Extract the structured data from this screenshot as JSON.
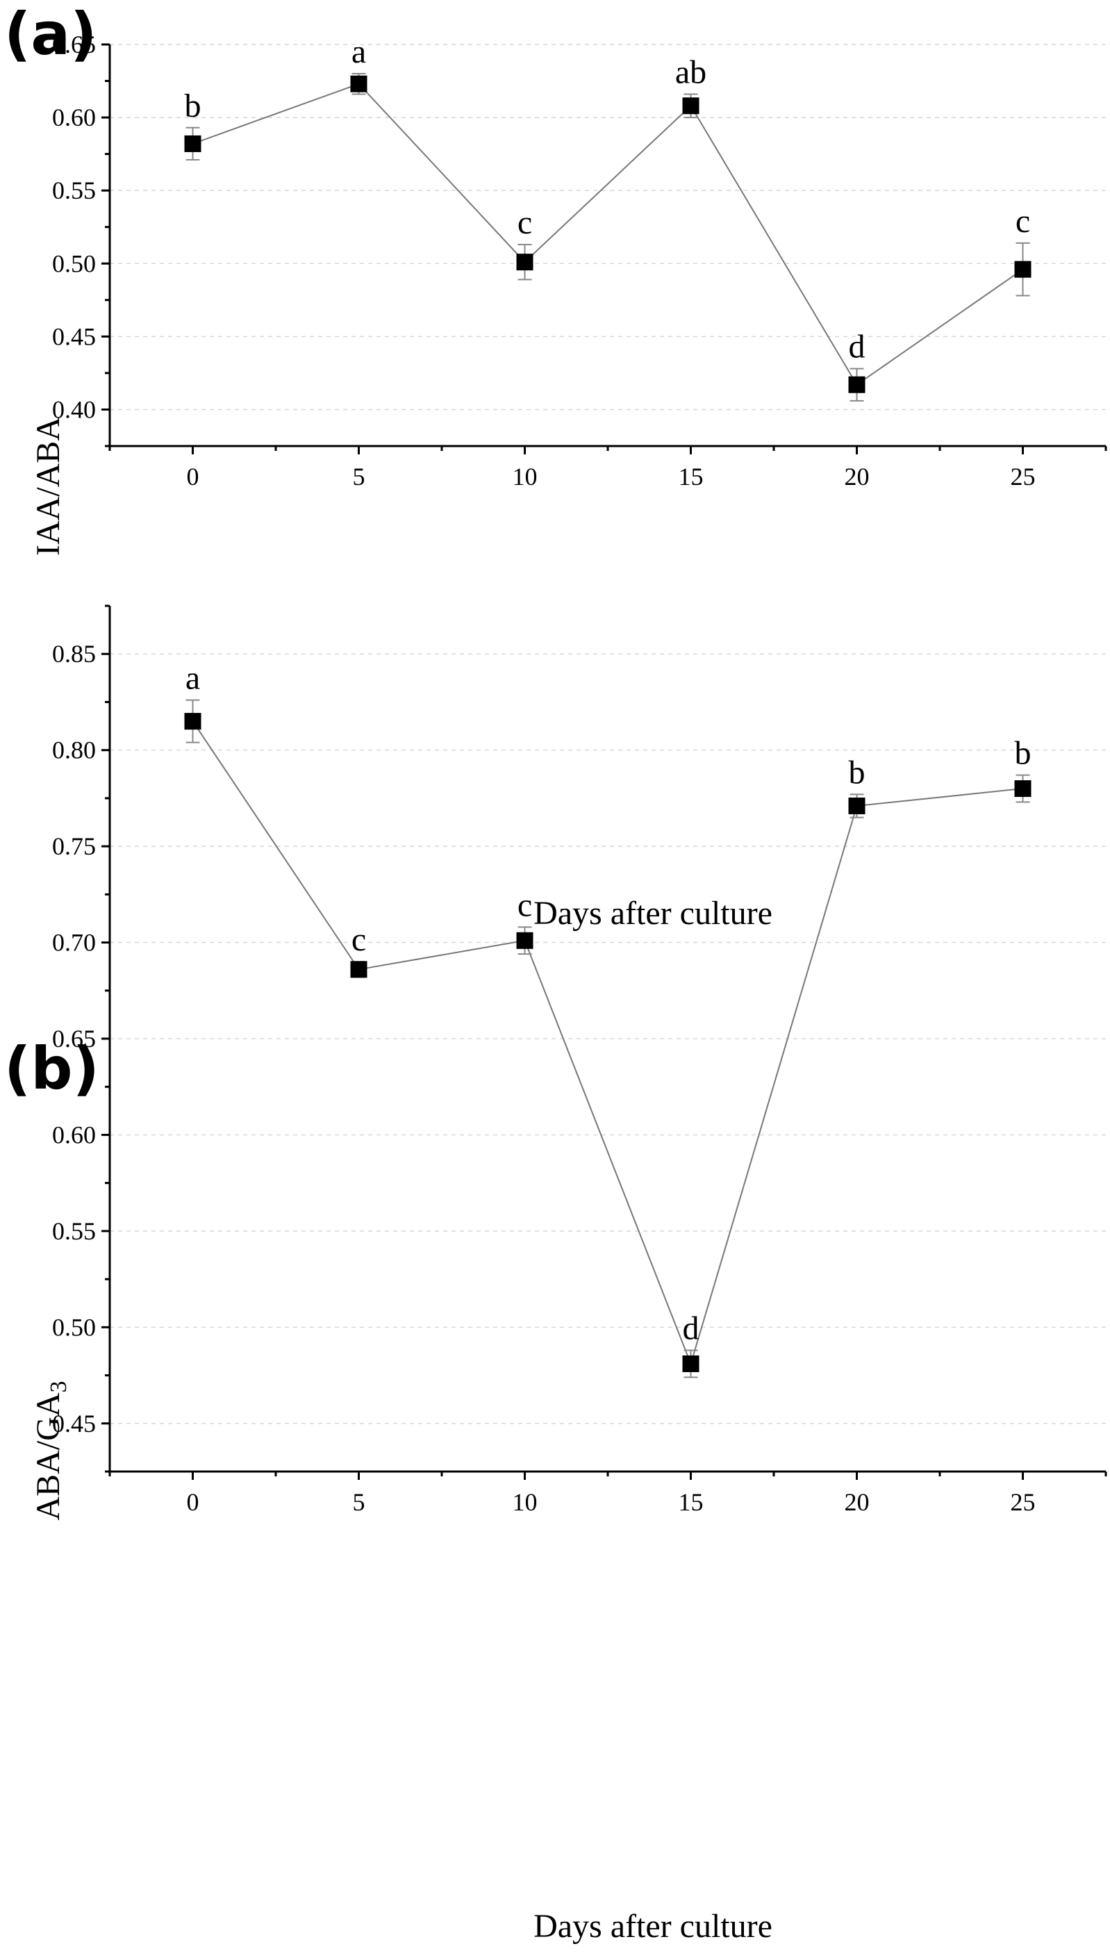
{
  "chart_data": [
    {
      "type": "line",
      "panel_label": "(a)",
      "xlabel": "Days after culture",
      "ylabel": "IAA/ABA",
      "x": [
        0,
        5,
        10,
        15,
        20,
        25
      ],
      "x_tick_labels": [
        "0",
        "5",
        "10",
        "15",
        "20",
        "25"
      ],
      "xlim": [
        -2.5,
        27.5
      ],
      "ylim": [
        0.375,
        0.65
      ],
      "y_ticks": [
        0.4,
        0.45,
        0.5,
        0.55,
        0.6,
        0.65
      ],
      "y_tick_labels": [
        "0.40",
        "0.45",
        "0.50",
        "0.55",
        "0.60",
        "0.65"
      ],
      "grid": true,
      "series": [
        {
          "name": "IAA/ABA",
          "values": [
            0.582,
            0.623,
            0.501,
            0.608,
            0.417,
            0.496
          ],
          "errors": [
            0.011,
            0.007,
            0.012,
            0.008,
            0.011,
            0.018
          ],
          "letters": [
            "b",
            "a",
            "c",
            "ab",
            "d",
            "c"
          ]
        }
      ]
    },
    {
      "type": "line",
      "panel_label": "(b)",
      "xlabel": "Days after culture",
      "ylabel_main": "ABA/GA",
      "ylabel_subscript": "3",
      "x": [
        0,
        5,
        10,
        15,
        20,
        25
      ],
      "x_tick_labels": [
        "0",
        "5",
        "10",
        "15",
        "20",
        "25"
      ],
      "xlim": [
        -2.5,
        27.5
      ],
      "ylim": [
        0.425,
        0.875
      ],
      "y_ticks": [
        0.45,
        0.5,
        0.55,
        0.6,
        0.65,
        0.7,
        0.75,
        0.8,
        0.85
      ],
      "y_tick_labels": [
        "0.45",
        "0.50",
        "0.55",
        "0.60",
        "0.65",
        "0.70",
        "0.75",
        "0.80",
        "0.85"
      ],
      "grid": true,
      "series": [
        {
          "name": "ABA/GA3",
          "values": [
            0.815,
            0.686,
            0.701,
            0.481,
            0.771,
            0.78
          ],
          "errors": [
            0.011,
            0.004,
            0.007,
            0.007,
            0.006,
            0.007
          ],
          "letters": [
            "a",
            "c",
            "c",
            "d",
            "b",
            "b"
          ]
        }
      ]
    }
  ]
}
